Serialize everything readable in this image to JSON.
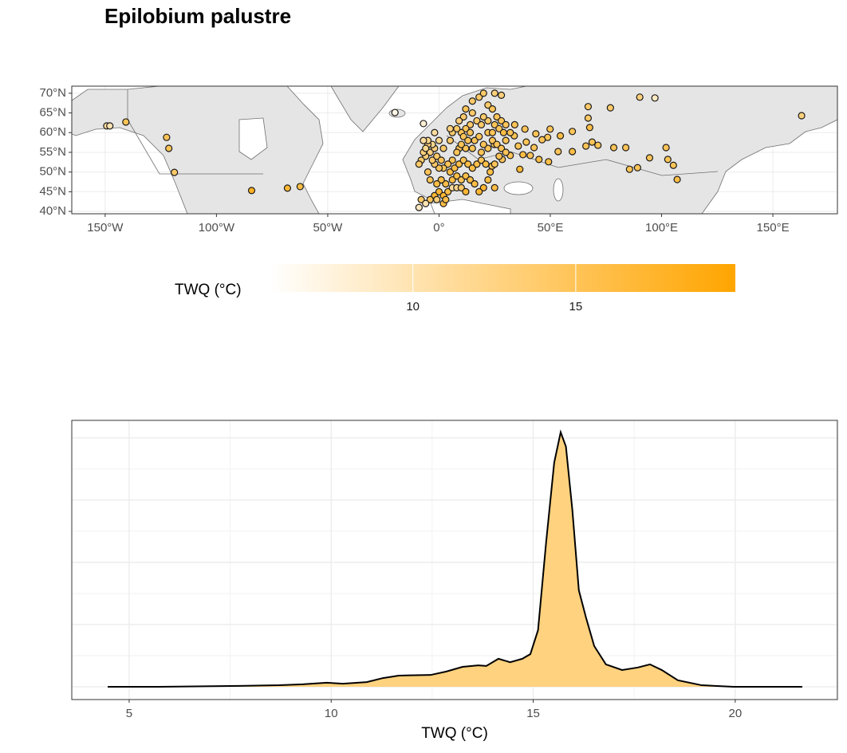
{
  "chart_data": [
    {
      "type": "scatter",
      "title": "Epilobium palustre",
      "legend_title": "TWQ (°C)",
      "xlim": [
        -165,
        179
      ],
      "ylim": [
        39.4,
        71.8
      ],
      "xticks": [
        {
          "value": -150,
          "label": "150°W"
        },
        {
          "value": -100,
          "label": "100°W"
        },
        {
          "value": -50,
          "label": "50°W"
        },
        {
          "value": 0,
          "label": "0°"
        },
        {
          "value": 50,
          "label": "50°E"
        },
        {
          "value": 100,
          "label": "100°E"
        },
        {
          "value": 150,
          "label": "150°E"
        }
      ],
      "yticks": [
        {
          "value": 40,
          "label": "40°N"
        },
        {
          "value": 45,
          "label": "45°N"
        },
        {
          "value": 50,
          "label": "50°N"
        },
        {
          "value": 55,
          "label": "55°N"
        },
        {
          "value": 60,
          "label": "60°N"
        },
        {
          "value": 65,
          "label": "65°N"
        },
        {
          "value": 70,
          "label": "70°N"
        }
      ],
      "color_scale": {
        "low": "#ffffff",
        "high": "#ffa500"
      },
      "clim": [
        5.6,
        19.9
      ],
      "cticks": [
        10,
        15
      ],
      "grid": true,
      "x": [
        -149.3,
        -147.9,
        -140.7,
        -122.4,
        -121.4,
        -118.9,
        -84.2,
        -68.1,
        -62.4,
        -19.8,
        -7.0,
        38.6,
        43.5,
        48.8,
        54.5,
        59.9,
        67.0,
        67.0,
        67.7,
        68.8,
        77.0,
        90.2,
        97.0,
        102.0,
        107.0,
        105.3,
        102.8,
        162.9,
        94.6,
        89.2,
        85.6,
        83.9,
        78.5,
        71.4,
        66.0,
        59.9,
        53.5,
        49.2,
        44.9,
        41.0,
        39.2,
        35.6,
        32.0,
        28.4,
        23.8,
        37.7,
        36.3,
        24.8,
        49.9,
        46.3,
        42.7,
        33.8,
        12,
        15,
        18,
        20,
        25,
        28,
        22,
        24,
        26,
        28,
        30,
        25,
        22,
        20,
        17,
        14,
        12,
        10,
        6,
        8,
        5,
        11,
        13,
        16,
        18,
        22,
        24,
        27,
        29,
        24,
        26,
        22,
        19,
        15,
        12,
        9,
        10,
        8,
        6,
        4,
        2,
        0,
        -2,
        -3,
        -4,
        -2,
        -3,
        -5,
        -6,
        -8,
        -9,
        -7,
        -1,
        1,
        5,
        7,
        9,
        11,
        13,
        15,
        17,
        19,
        21,
        23,
        25,
        27,
        28,
        30,
        6,
        8,
        10,
        12,
        14,
        16,
        3,
        1,
        -1,
        -2,
        0,
        2,
        4,
        6,
        8,
        10,
        12,
        -4,
        -8,
        -6,
        -1,
        -9,
        2,
        20,
        22,
        25,
        18,
        -5,
        -4,
        3,
        30,
        32,
        34,
        20,
        14,
        5,
        -5,
        -6,
        0,
        2,
        11,
        15,
        19,
        -7,
        -2,
        9
      ],
      "y": [
        61.7,
        61.7,
        62.7,
        58.8,
        56.0,
        49.9,
        45.3,
        45.9,
        46.3,
        65.1,
        62.3,
        60.9,
        59.7,
        58.8,
        59.2,
        60.3,
        66.6,
        63.7,
        61.3,
        57.6,
        66.3,
        69.0,
        68.8,
        56.2,
        48.1,
        51.7,
        53.2,
        64.3,
        53.6,
        51.1,
        50.7,
        56.2,
        56.2,
        56.8,
        56.6,
        55.2,
        55.2,
        52.6,
        53.2,
        54.2,
        57.6,
        56.6,
        54.2,
        53.2,
        51.5,
        54.4,
        50.7,
        57.0,
        60.9,
        58.2,
        56.2,
        59.2,
        66,
        68,
        69,
        70,
        70,
        69.5,
        67,
        66,
        64,
        63,
        62,
        62,
        63,
        64,
        63,
        62,
        61,
        60,
        60,
        61,
        61,
        59,
        58,
        58,
        59,
        60,
        60,
        61,
        60,
        58,
        57,
        56,
        55,
        56,
        56,
        56,
        57,
        55,
        53,
        52,
        51,
        51,
        52,
        53,
        55,
        56,
        57,
        57,
        54,
        53,
        52,
        55,
        54,
        53,
        50,
        51,
        52,
        53,
        52,
        51,
        52,
        53,
        52,
        50,
        52,
        54,
        56,
        55,
        48,
        49,
        48,
        49,
        48,
        47,
        47,
        48,
        47,
        44,
        45,
        44,
        45,
        46,
        46,
        46,
        45,
        43,
        43,
        42,
        43,
        41,
        42,
        46,
        48,
        46,
        45,
        50,
        48,
        43,
        58,
        60,
        62,
        57,
        60,
        58,
        58,
        56,
        58,
        56,
        64,
        65,
        62,
        58,
        60,
        63
      ],
      "values": [
        11,
        10,
        15,
        15,
        15,
        14,
        18,
        17,
        16,
        7,
        8,
        15,
        15,
        15,
        16,
        15,
        14,
        14,
        16,
        15,
        14,
        13,
        9,
        15,
        16,
        15,
        15,
        13,
        15,
        15,
        15,
        15,
        15,
        15,
        15,
        16,
        15,
        16,
        16,
        15,
        15,
        15,
        15,
        15,
        15,
        16,
        17,
        14,
        15,
        15,
        15,
        15,
        15,
        14,
        14,
        14,
        13,
        13,
        14,
        15,
        15,
        15,
        15,
        15,
        14,
        14,
        14,
        14,
        15,
        15,
        14,
        14,
        13,
        15,
        15,
        15,
        15,
        15,
        15,
        15,
        16,
        15,
        15,
        15,
        15,
        15,
        15,
        15,
        15,
        15,
        15,
        15,
        15,
        15,
        14,
        14,
        13,
        13,
        12,
        13,
        13,
        14,
        14,
        13,
        14,
        15,
        16,
        16,
        16,
        15,
        16,
        16,
        16,
        15,
        16,
        16,
        15,
        15,
        15,
        15,
        16,
        16,
        15,
        16,
        16,
        16,
        16,
        16,
        16,
        17,
        17,
        17,
        16,
        11,
        12,
        14,
        17,
        15,
        14,
        10,
        13,
        9,
        16,
        17,
        16,
        16,
        17,
        15,
        15,
        16,
        15,
        15,
        15,
        15,
        15,
        14,
        12,
        12,
        12,
        14,
        14,
        14,
        14,
        11,
        11,
        13
      ]
    },
    {
      "type": "area",
      "x_label": "TWQ (°C)",
      "color": "#ffd27f",
      "line_color": "#000000",
      "xlim": [
        3.58,
        22.53
      ],
      "ylim": [
        -0.041,
        0.856
      ],
      "xticks": [
        5,
        10,
        15,
        20
      ],
      "yticks": [
        0,
        0.2,
        0.4,
        0.6,
        0.8
      ],
      "grid": true,
      "x": [
        4.47,
        5.75,
        7.72,
        8.71,
        9.3,
        9.89,
        10.29,
        10.88,
        11.28,
        11.67,
        12.46,
        12.85,
        13.25,
        13.64,
        13.84,
        14.14,
        14.43,
        14.73,
        14.93,
        15.12,
        15.32,
        15.52,
        15.68,
        15.81,
        15.97,
        16.13,
        16.31,
        16.51,
        16.8,
        17.2,
        17.59,
        17.89,
        18.18,
        18.58,
        19.17,
        19.96,
        21.66
      ],
      "values": [
        0,
        0,
        0.003,
        0.005,
        0.008,
        0.013,
        0.01,
        0.015,
        0.028,
        0.036,
        0.038,
        0.049,
        0.064,
        0.069,
        0.067,
        0.09,
        0.079,
        0.09,
        0.105,
        0.182,
        0.464,
        0.72,
        0.818,
        0.772,
        0.567,
        0.31,
        0.221,
        0.131,
        0.072,
        0.054,
        0.062,
        0.072,
        0.054,
        0.021,
        0.005,
        0,
        0
      ]
    }
  ]
}
